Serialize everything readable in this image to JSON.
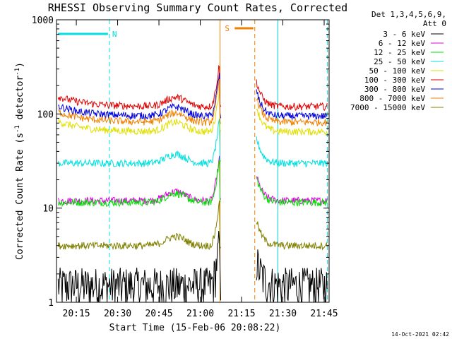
{
  "chart_data": {
    "type": "line",
    "title": "RHESSI Observing Summary Count Rates, Corrected",
    "xlabel": "Start Time (15-Feb-06 20:08:22)",
    "ylabel": "Corrected Count Rate (s^-1 detector^-1)",
    "ylabel_main": "Corrected Count Rate (s",
    "ylabel_sup1": "-1",
    "ylabel_mid": " detector",
    "ylabel_sup2": "-1",
    "ylabel_end": ")",
    "y_scale": "log",
    "ylim": [
      1,
      1000
    ],
    "xlim_minutes": [
      20.13,
      21.78
    ],
    "x_ticks": [
      {
        "label": "20:15",
        "t": 20.25
      },
      {
        "label": "20:30",
        "t": 20.5
      },
      {
        "label": "20:45",
        "t": 20.75
      },
      {
        "label": "21:00",
        "t": 21.0
      },
      {
        "label": "21:15",
        "t": 21.25
      },
      {
        "label": "21:30",
        "t": 21.5
      },
      {
        "label": "21:45",
        "t": 21.75
      }
    ],
    "y_ticks": [
      {
        "label": "1",
        "v": 1
      },
      {
        "label": "10",
        "v": 10
      },
      {
        "label": "100",
        "v": 100
      },
      {
        "label": "1000",
        "v": 1000
      }
    ],
    "legend_header": [
      "Det 1,3,4,5,6,9,",
      "Att 0"
    ],
    "legend_position": "right",
    "series": [
      {
        "name": "3 - 6 keV",
        "color": "#000000",
        "base": 1.8
      },
      {
        "name": "6 - 12 keV",
        "color": "#e000e0",
        "base": 12
      },
      {
        "name": "12 - 25 keV",
        "color": "#00e000",
        "base": 11.5
      },
      {
        "name": "25 - 50 keV",
        "color": "#00e0e0",
        "base": 30
      },
      {
        "name": "50 - 100 keV",
        "color": "#e0e000",
        "base": 65
      },
      {
        "name": "100 - 300 keV",
        "color": "#e00000",
        "base": 120
      },
      {
        "name": "300 - 800 keV",
        "color": "#0000e0",
        "base": 95
      },
      {
        "name": "800 - 7000 keV",
        "color": "#f08000",
        "base": 82
      },
      {
        "name": "7000 - 15000 keV",
        "color": "#808000",
        "base": 4
      }
    ],
    "flags": [
      {
        "label": "N",
        "color": "#00e0e0",
        "start": 20.13,
        "end": 20.45
      },
      {
        "label": "S",
        "color": "#f08000",
        "start": 21.2,
        "end": 21.33
      }
    ],
    "annotation_lines": [
      {
        "t": 20.13,
        "color": "#00e0e0",
        "style": "solid"
      },
      {
        "t": 20.45,
        "color": "#00e0e0",
        "style": "dashed"
      },
      {
        "t": 21.12,
        "color": "#f08000",
        "style": "solid"
      },
      {
        "t": 21.33,
        "color": "#f08000",
        "style": "dashed"
      },
      {
        "t": 21.47,
        "color": "#00e0e0",
        "style": "solid"
      },
      {
        "t": 21.77,
        "color": "#00e0e0",
        "style": "dashed"
      }
    ]
  },
  "footer": {
    "timestamp": "14-Oct-2021 02:42"
  }
}
